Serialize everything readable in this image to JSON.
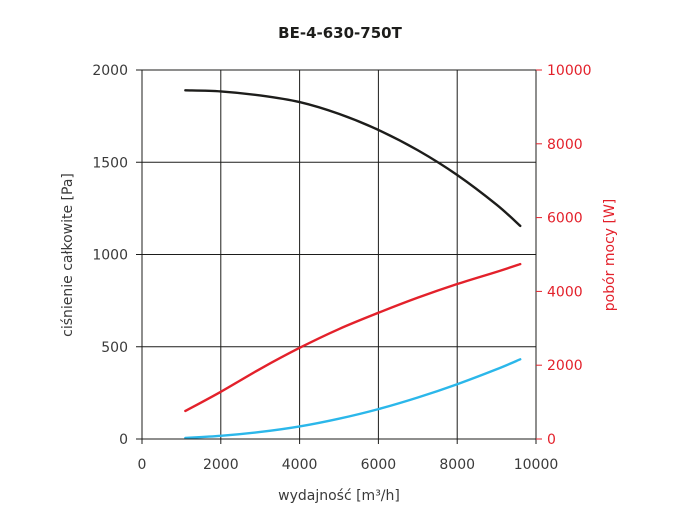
{
  "chart_data": {
    "type": "line",
    "title": "BE-4-630-750T",
    "xlabel": "wydajność [m³/h]",
    "ylabel": "ciśnienie całkowite [Pa]",
    "y2label": "pobór mocy [W]",
    "xlim": [
      0,
      10000
    ],
    "ylim": [
      0,
      2000
    ],
    "y2lim": [
      0,
      10000
    ],
    "xticks": [
      0,
      2000,
      4000,
      6000,
      8000,
      10000
    ],
    "yticks": [
      0,
      500,
      1000,
      1500,
      2000
    ],
    "y2ticks": [
      0,
      2000,
      4000,
      6000,
      8000,
      10000
    ],
    "grid": true,
    "axis_color_right": "#e3212b",
    "series": [
      {
        "axis": "left",
        "color": "#1d1d1b",
        "x": [
          1100,
          2000,
          3000,
          4000,
          5000,
          6000,
          7000,
          8000,
          9000,
          9600
        ],
        "y": [
          1890,
          1884,
          1862,
          1826,
          1762,
          1675,
          1565,
          1431,
          1270,
          1155
        ]
      },
      {
        "axis": "right",
        "color": "#e3212b",
        "x": [
          1100,
          2000,
          3000,
          4000,
          5000,
          6000,
          7000,
          8000,
          9000,
          9600
        ],
        "y": [
          760,
          1280,
          1900,
          2470,
          2980,
          3420,
          3830,
          4200,
          4530,
          4740
        ]
      },
      {
        "axis": "left",
        "color": "#2bb7ea",
        "x": [
          1100,
          2000,
          3000,
          4000,
          5000,
          6000,
          7000,
          8000,
          9000,
          9600
        ],
        "y": [
          6,
          17,
          38,
          68,
          110,
          162,
          225,
          297,
          378,
          432
        ]
      }
    ]
  }
}
